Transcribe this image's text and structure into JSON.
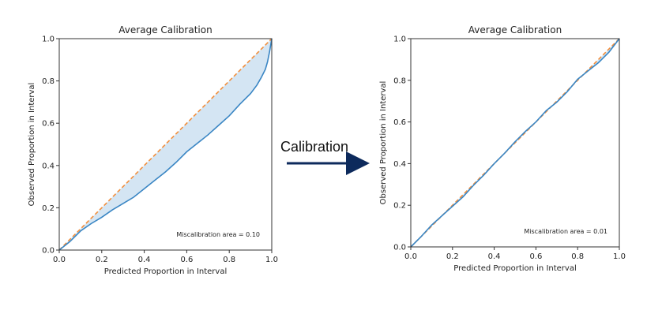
{
  "arrow": {
    "label": "Calibration",
    "color": "#0d2a5c"
  },
  "colors": {
    "model_line": "#3a86c4",
    "ideal_line": "#f28e3c",
    "fill": "#c6dcef"
  },
  "chart_data": [
    {
      "type": "line",
      "title": "Average Calibration",
      "xlabel": "Predicted Proportion in Interval",
      "ylabel": "Observed Proportion in Interval",
      "xlim": [
        0,
        1
      ],
      "ylim": [
        0,
        1
      ],
      "xticks": [
        "0.0",
        "0.2",
        "0.4",
        "0.6",
        "0.8",
        "1.0"
      ],
      "yticks": [
        "0.0",
        "0.2",
        "0.4",
        "0.6",
        "0.8",
        "1.0"
      ],
      "annotation": "Miscalibration area = 0.10",
      "grid": false,
      "fill_between": true,
      "series": [
        {
          "style": "solid",
          "x": [
            0,
            0.05,
            0.1,
            0.15,
            0.2,
            0.25,
            0.3,
            0.35,
            0.4,
            0.45,
            0.5,
            0.55,
            0.6,
            0.65,
            0.7,
            0.75,
            0.8,
            0.85,
            0.9,
            0.93,
            0.95,
            0.97,
            0.98,
            0.99,
            1.0
          ],
          "y": [
            0,
            0.04,
            0.09,
            0.125,
            0.155,
            0.19,
            0.22,
            0.25,
            0.29,
            0.33,
            0.37,
            0.415,
            0.465,
            0.505,
            0.545,
            0.59,
            0.635,
            0.69,
            0.74,
            0.78,
            0.815,
            0.855,
            0.89,
            0.94,
            1.0
          ]
        },
        {
          "style": "dashed",
          "x": [
            0,
            1
          ],
          "y": [
            0,
            1
          ]
        }
      ]
    },
    {
      "type": "line",
      "title": "Average Calibration",
      "xlabel": "Predicted Proportion in Interval",
      "ylabel": "Observed Proportion in Interval",
      "xlim": [
        0,
        1
      ],
      "ylim": [
        0,
        1
      ],
      "xticks": [
        "0.0",
        "0.2",
        "0.4",
        "0.6",
        "0.8",
        "1.0"
      ],
      "yticks": [
        "0.0",
        "0.2",
        "0.4",
        "0.6",
        "0.8",
        "1.0"
      ],
      "annotation": "Miscalibration area = 0.01",
      "grid": false,
      "fill_between": true,
      "series": [
        {
          "style": "solid",
          "x": [
            0,
            0.05,
            0.1,
            0.15,
            0.2,
            0.25,
            0.3,
            0.35,
            0.4,
            0.45,
            0.5,
            0.55,
            0.6,
            0.65,
            0.7,
            0.75,
            0.8,
            0.85,
            0.9,
            0.95,
            1.0
          ],
          "y": [
            0,
            0.05,
            0.105,
            0.15,
            0.195,
            0.24,
            0.295,
            0.345,
            0.4,
            0.45,
            0.505,
            0.555,
            0.6,
            0.655,
            0.695,
            0.745,
            0.805,
            0.845,
            0.885,
            0.935,
            1.0
          ]
        },
        {
          "style": "dashed",
          "x": [
            0,
            1
          ],
          "y": [
            0,
            1
          ]
        }
      ]
    }
  ]
}
